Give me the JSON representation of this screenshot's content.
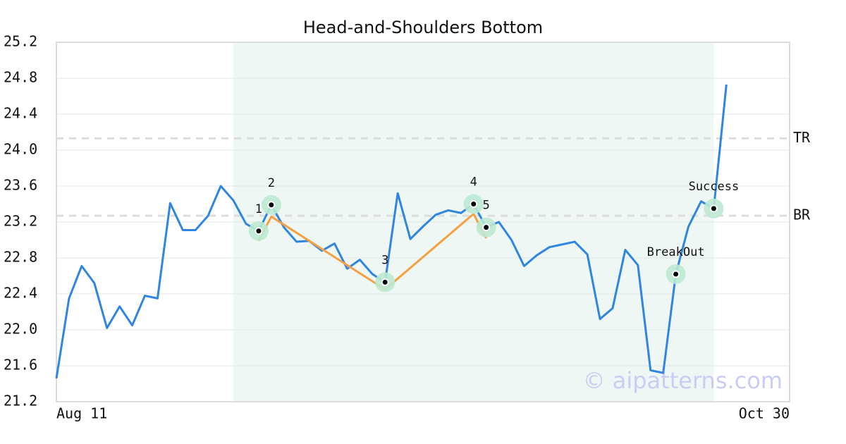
{
  "chart_data": {
    "type": "line",
    "title": "Head-and-Shoulders Bottom",
    "watermark": "© aipatterns.com",
    "categories": [
      "Aug 11",
      null,
      null,
      null,
      null,
      null,
      null,
      null,
      null,
      null,
      null,
      null,
      null,
      null,
      null,
      null,
      null,
      null,
      null,
      null,
      null,
      null,
      null,
      null,
      null,
      null,
      null,
      null,
      null,
      null,
      null,
      null,
      null,
      null,
      null,
      null,
      null,
      null,
      null,
      null,
      null,
      null,
      null,
      null,
      null,
      null,
      null,
      null,
      null,
      null,
      null,
      null,
      null,
      null,
      null,
      null,
      null,
      null,
      "Oct 30"
    ],
    "series": [
      {
        "color": "#2f86e0",
        "values": [
          21.46,
          22.35,
          22.71,
          22.52,
          22.02,
          22.26,
          22.05,
          22.38,
          22.35,
          23.41,
          23.11,
          23.11,
          23.27,
          23.6,
          23.44,
          23.18,
          23.1,
          23.39,
          23.14,
          22.98,
          22.99,
          22.88,
          22.96,
          22.68,
          22.78,
          22.62,
          22.53,
          23.52,
          23.01,
          23.15,
          23.28,
          23.33,
          23.3,
          23.4,
          23.14,
          23.2,
          23.0,
          22.71,
          22.83,
          22.92,
          22.95,
          22.98,
          22.84,
          22.12,
          22.24,
          22.89,
          22.72,
          21.55,
          21.52,
          22.62,
          23.15,
          23.43,
          23.35,
          24.73,
          null,
          null,
          null,
          null,
          null
        ]
      },
      {
        "color": "#f5a042",
        "values": [
          null,
          null,
          null,
          null,
          null,
          null,
          null,
          null,
          null,
          null,
          null,
          null,
          null,
          null,
          null,
          null,
          22.99,
          23.26,
          23.17,
          23.08,
          22.99,
          22.9,
          22.81,
          22.72,
          22.63,
          22.54,
          22.45,
          22.57,
          22.69,
          22.81,
          22.93,
          23.05,
          23.17,
          23.29,
          23.02,
          null,
          null,
          null,
          null,
          null,
          null,
          null,
          null,
          null,
          null,
          null,
          null,
          null,
          null,
          null,
          null,
          null,
          null,
          null,
          null,
          null,
          null,
          null,
          null
        ]
      },
      {
        "type": "scatter",
        "color": "#bde9d3",
        "values": [
          null,
          null,
          null,
          null,
          null,
          null,
          null,
          null,
          null,
          null,
          null,
          null,
          null,
          null,
          null,
          null,
          23.1,
          23.39,
          null,
          null,
          null,
          null,
          null,
          null,
          null,
          null,
          22.53,
          null,
          null,
          null,
          null,
          null,
          null,
          23.4,
          23.14,
          null,
          null,
          null,
          null,
          null,
          null,
          null,
          null,
          null,
          null,
          null,
          null,
          null,
          null,
          22.62,
          null,
          null,
          23.35,
          null,
          null,
          null,
          null,
          null,
          null
        ],
        "value_labels": [
          null,
          null,
          null,
          null,
          null,
          null,
          null,
          null,
          null,
          null,
          null,
          null,
          null,
          null,
          null,
          null,
          "1",
          "2",
          null,
          null,
          null,
          null,
          null,
          null,
          null,
          null,
          "3",
          null,
          null,
          null,
          null,
          null,
          null,
          "4",
          "5",
          null,
          null,
          null,
          null,
          null,
          null,
          null,
          null,
          null,
          null,
          null,
          null,
          null,
          null,
          "BreakOut",
          null,
          null,
          "Success",
          null,
          null,
          null,
          null,
          null,
          null
        ]
      }
    ],
    "hlines": [
      {
        "label": "TR",
        "value": 24.13
      },
      {
        "label": "BR",
        "value": 23.27
      }
    ],
    "highlight_range": {
      "from": 14,
      "to": 52,
      "color": "#eef7f3"
    },
    "ylim": [
      21.2,
      25.2
    ],
    "yticks": [
      21.2,
      21.6,
      {
        "value": 22,
        "label": "22.0"
      },
      22.4,
      22.8,
      23.2,
      23.6,
      {
        "value": 24,
        "label": "24.0"
      },
      24.4,
      24.8,
      25.2
    ],
    "grid": true
  }
}
